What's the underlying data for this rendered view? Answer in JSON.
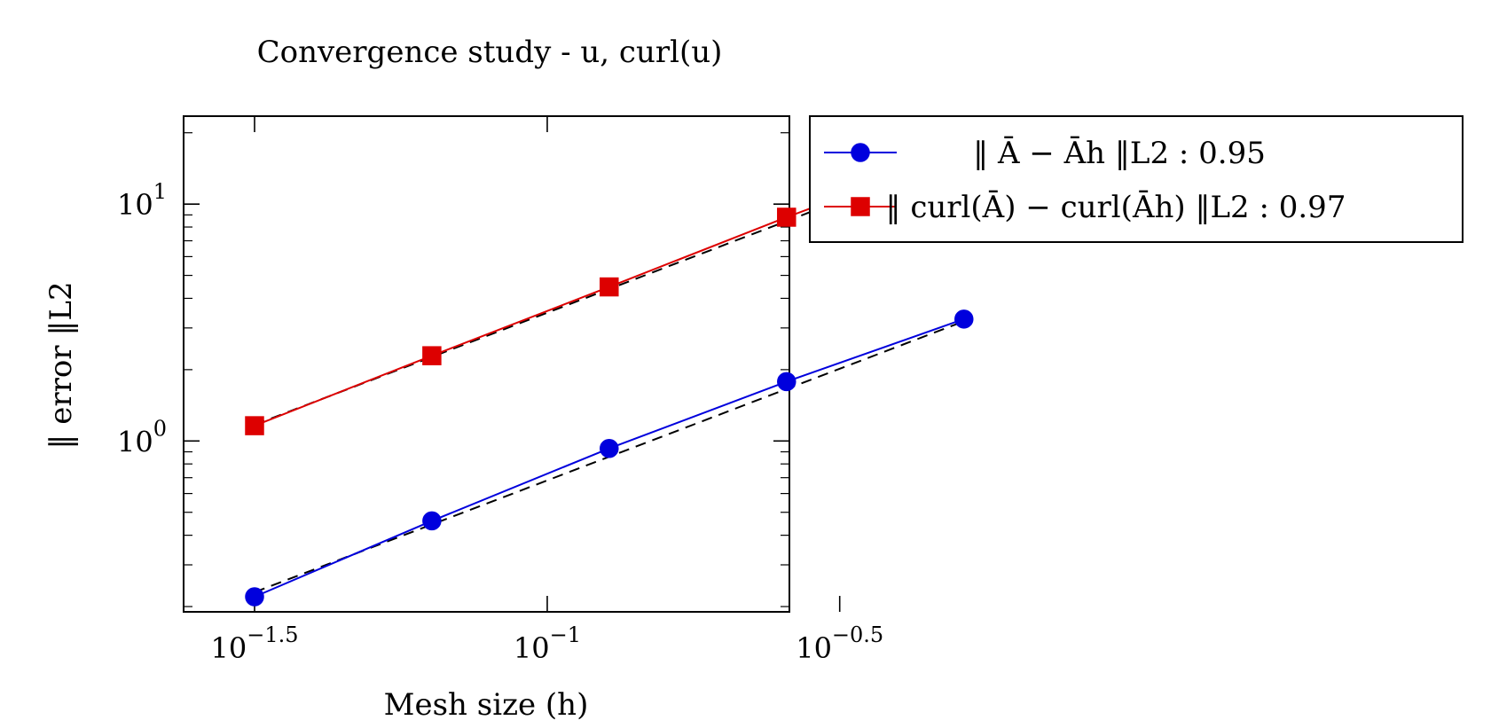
{
  "page": {
    "background": "#ffffff"
  },
  "chart_data": {
    "type": "line",
    "title": "Convergence study - u, curl(u)",
    "xlabel": "Mesh size (h)",
    "ylabel": "‖ error ‖L2",
    "xscale": "log",
    "yscale": "log",
    "xlim": [
      0.0239,
      0.2594
    ],
    "ylim": [
      0.19,
      23.5
    ],
    "x_ticks": [
      {
        "value": 0.0316,
        "label": "10^−1.5"
      },
      {
        "value": 0.1,
        "label": "10^−1"
      },
      {
        "value": 0.3162,
        "label": "10^−0.5"
      }
    ],
    "y_ticks": [
      {
        "value": 1,
        "label": "10^0"
      },
      {
        "value": 10,
        "label": "10^1"
      }
    ],
    "grid": false,
    "legend_position": "outside-right",
    "series": [
      {
        "name": "‖ Ā − Āh ‖L2 : 0.95",
        "label_math": "‖ Ā − Āh ‖L2 : 0.95",
        "color": "#0000dd",
        "marker": "circle",
        "x": [
          0.0316,
          0.0635,
          0.1276,
          0.2565,
          0.5156
        ],
        "y": [
          0.22,
          0.46,
          0.93,
          1.78,
          3.27
        ]
      },
      {
        "name": "‖ curl(Ā) − curl(Āh) ‖L2 : 0.97",
        "label_math": "‖ curl(Ā) − curl(Āh) ‖L2 : 0.97",
        "color": "#dd0000",
        "marker": "square",
        "x": [
          0.0316,
          0.0635,
          0.1276,
          0.2565,
          0.5156
        ],
        "y": [
          1.16,
          2.29,
          4.47,
          8.8,
          16.7
        ]
      }
    ],
    "fit_lines": [
      {
        "color": "#000000",
        "dash": "dashed",
        "x": [
          0.0316,
          0.5156
        ],
        "y": [
          0.23,
          3.2
        ]
      },
      {
        "color": "#000000",
        "dash": "dashed",
        "x": [
          0.0316,
          0.5156
        ],
        "y": [
          1.17,
          16.4
        ]
      }
    ]
  }
}
